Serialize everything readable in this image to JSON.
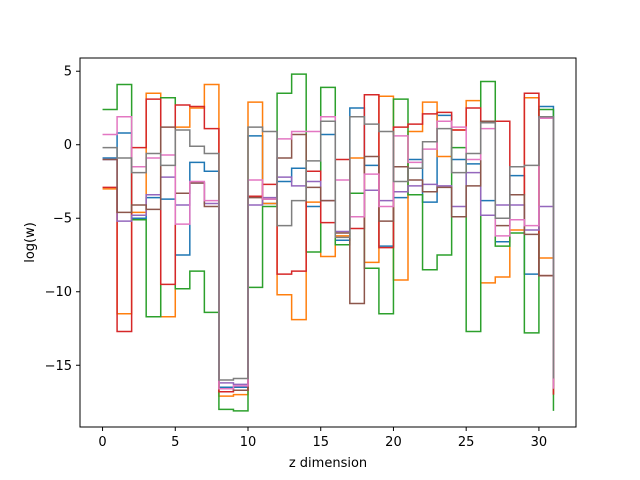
{
  "chart_data": {
    "type": "line",
    "subtype": "step",
    "title": "",
    "xlabel": "z dimension",
    "ylabel": "log(w)",
    "xlim": [
      -1.55,
      32.55
    ],
    "ylim": [
      -19.2,
      5.9
    ],
    "grid": false,
    "x_ticks": [
      0,
      5,
      10,
      15,
      20,
      25,
      30
    ],
    "x_tick_labels": [
      "0",
      "5",
      "10",
      "15",
      "20",
      "25",
      "30"
    ],
    "y_ticks": [
      5,
      0,
      -5,
      -10,
      -15
    ],
    "y_tick_labels": [
      "5",
      "0",
      "−5",
      "−10",
      "−15"
    ],
    "x_edges": [
      0,
      1,
      2,
      3,
      4,
      5,
      6,
      7,
      8,
      9,
      10,
      11,
      12,
      13,
      14,
      15,
      16,
      17,
      18,
      19,
      20,
      21,
      22,
      23,
      24,
      25,
      26,
      27,
      28,
      29,
      30,
      31
    ],
    "series": [
      {
        "color": "#1f77b4",
        "values": [
          -0.9,
          0.8,
          -5.0,
          -3.6,
          -3.7,
          -7.5,
          -1.2,
          -1.8,
          -16.5,
          -16.5,
          0.6,
          -4.0,
          -2.5,
          -1.6,
          -4.2,
          0.7,
          -6.5,
          2.5,
          -1.4,
          -6.9,
          -3.6,
          -1.0,
          -3.9,
          2.0,
          -1.0,
          -1.3,
          -3.8,
          -6.6,
          -2.1,
          -8.8,
          2.6
        ]
      },
      {
        "color": "#ff7f0e",
        "values": [
          -3.0,
          -11.5,
          -4.6,
          3.5,
          -11.7,
          1.2,
          2.5,
          4.1,
          -17.1,
          -17.0,
          2.9,
          -4.0,
          -10.2,
          -11.9,
          -3.9,
          -7.6,
          -6.2,
          -0.9,
          -8.0,
          3.3,
          -9.2,
          0.9,
          2.9,
          -0.8,
          1.0,
          3.0,
          -9.4,
          -9.0,
          -5.8,
          3.2,
          -7.7
        ]
      },
      {
        "color": "#2ca02c",
        "values": [
          2.4,
          4.1,
          -5.1,
          -11.7,
          3.2,
          -9.8,
          -8.6,
          -11.4,
          -18.0,
          -18.1,
          -9.7,
          -4.2,
          3.5,
          4.8,
          -7.3,
          3.9,
          -6.8,
          -3.3,
          -8.4,
          -11.5,
          3.1,
          -3.4,
          -8.5,
          -7.5,
          -0.2,
          -12.7,
          4.3,
          -6.9,
          -6.0,
          -12.8,
          2.4
        ]
      },
      {
        "color": "#d62728",
        "values": [
          -2.9,
          -12.7,
          -0.2,
          3.1,
          -9.5,
          2.7,
          2.6,
          1.1,
          -16.8,
          -16.7,
          -3.5,
          -2.7,
          -8.8,
          -8.6,
          -1.8,
          -5.3,
          -1.0,
          -5.7,
          3.4,
          -7.0,
          1.2,
          1.4,
          2.1,
          2.2,
          1.0,
          2.5,
          1.5,
          1.6,
          -3.4,
          3.5,
          -8.9
        ]
      },
      {
        "color": "#9467bd",
        "values": [
          -1.0,
          -5.2,
          -4.8,
          -3.4,
          -2.2,
          -4.1,
          -2.6,
          -4.0,
          -16.2,
          -16.3,
          -4.1,
          -3.6,
          -2.2,
          -2.8,
          -2.5,
          -3.8,
          -5.9,
          -4.9,
          -3.1,
          -3.8,
          -3.2,
          -2.8,
          -2.7,
          -2.8,
          -4.2,
          -1.9,
          -4.8,
          -4.1,
          -4.1,
          -5.8,
          -4.2
        ]
      },
      {
        "color": "#8c564b",
        "values": [
          -1.0,
          -4.6,
          -4.1,
          -4.4,
          1.2,
          -3.3,
          -2.6,
          -4.2,
          -16.6,
          -16.7,
          -3.6,
          -3.7,
          -0.9,
          0.7,
          -2.9,
          -3.8,
          -6.0,
          -10.8,
          -0.8,
          -5.2,
          -1.5,
          -2.4,
          -3.2,
          -2.9,
          -4.9,
          -2.8,
          1.6,
          -5.5,
          -3.4,
          -6.1,
          -8.9
        ]
      },
      {
        "color": "#e377c2",
        "values": [
          0.7,
          1.9,
          -1.5,
          -0.9,
          -0.7,
          -5.4,
          -2.5,
          -3.8,
          -16.6,
          -16.4,
          -2.4,
          -3.7,
          0.4,
          0.9,
          0.9,
          1.9,
          -2.4,
          -4.9,
          -2.0,
          -4.2,
          0.6,
          -1.2,
          -0.3,
          1.6,
          1.2,
          -1.0,
          1.1,
          -6.2,
          -5.1,
          -5.5,
          1.8
        ]
      },
      {
        "color": "#7f7f7f",
        "values": [
          -0.2,
          -0.9,
          -1.9,
          -0.6,
          -1.4,
          1.0,
          -0.1,
          -0.6,
          -16.0,
          -15.9,
          1.2,
          0.9,
          -5.5,
          -3.8,
          -1.1,
          1.6,
          -6.3,
          1.9,
          1.4,
          0.9,
          -2.5,
          -1.6,
          0.2,
          1.1,
          -1.9,
          -0.6,
          1.5,
          -5.0,
          -1.5,
          -1.4,
          1.9
        ]
      }
    ],
    "tail_values": [
      -16.4,
      -17.0,
      -18.1,
      -17.0,
      -15.9,
      -16.6,
      -16.6,
      -15.9
    ]
  }
}
